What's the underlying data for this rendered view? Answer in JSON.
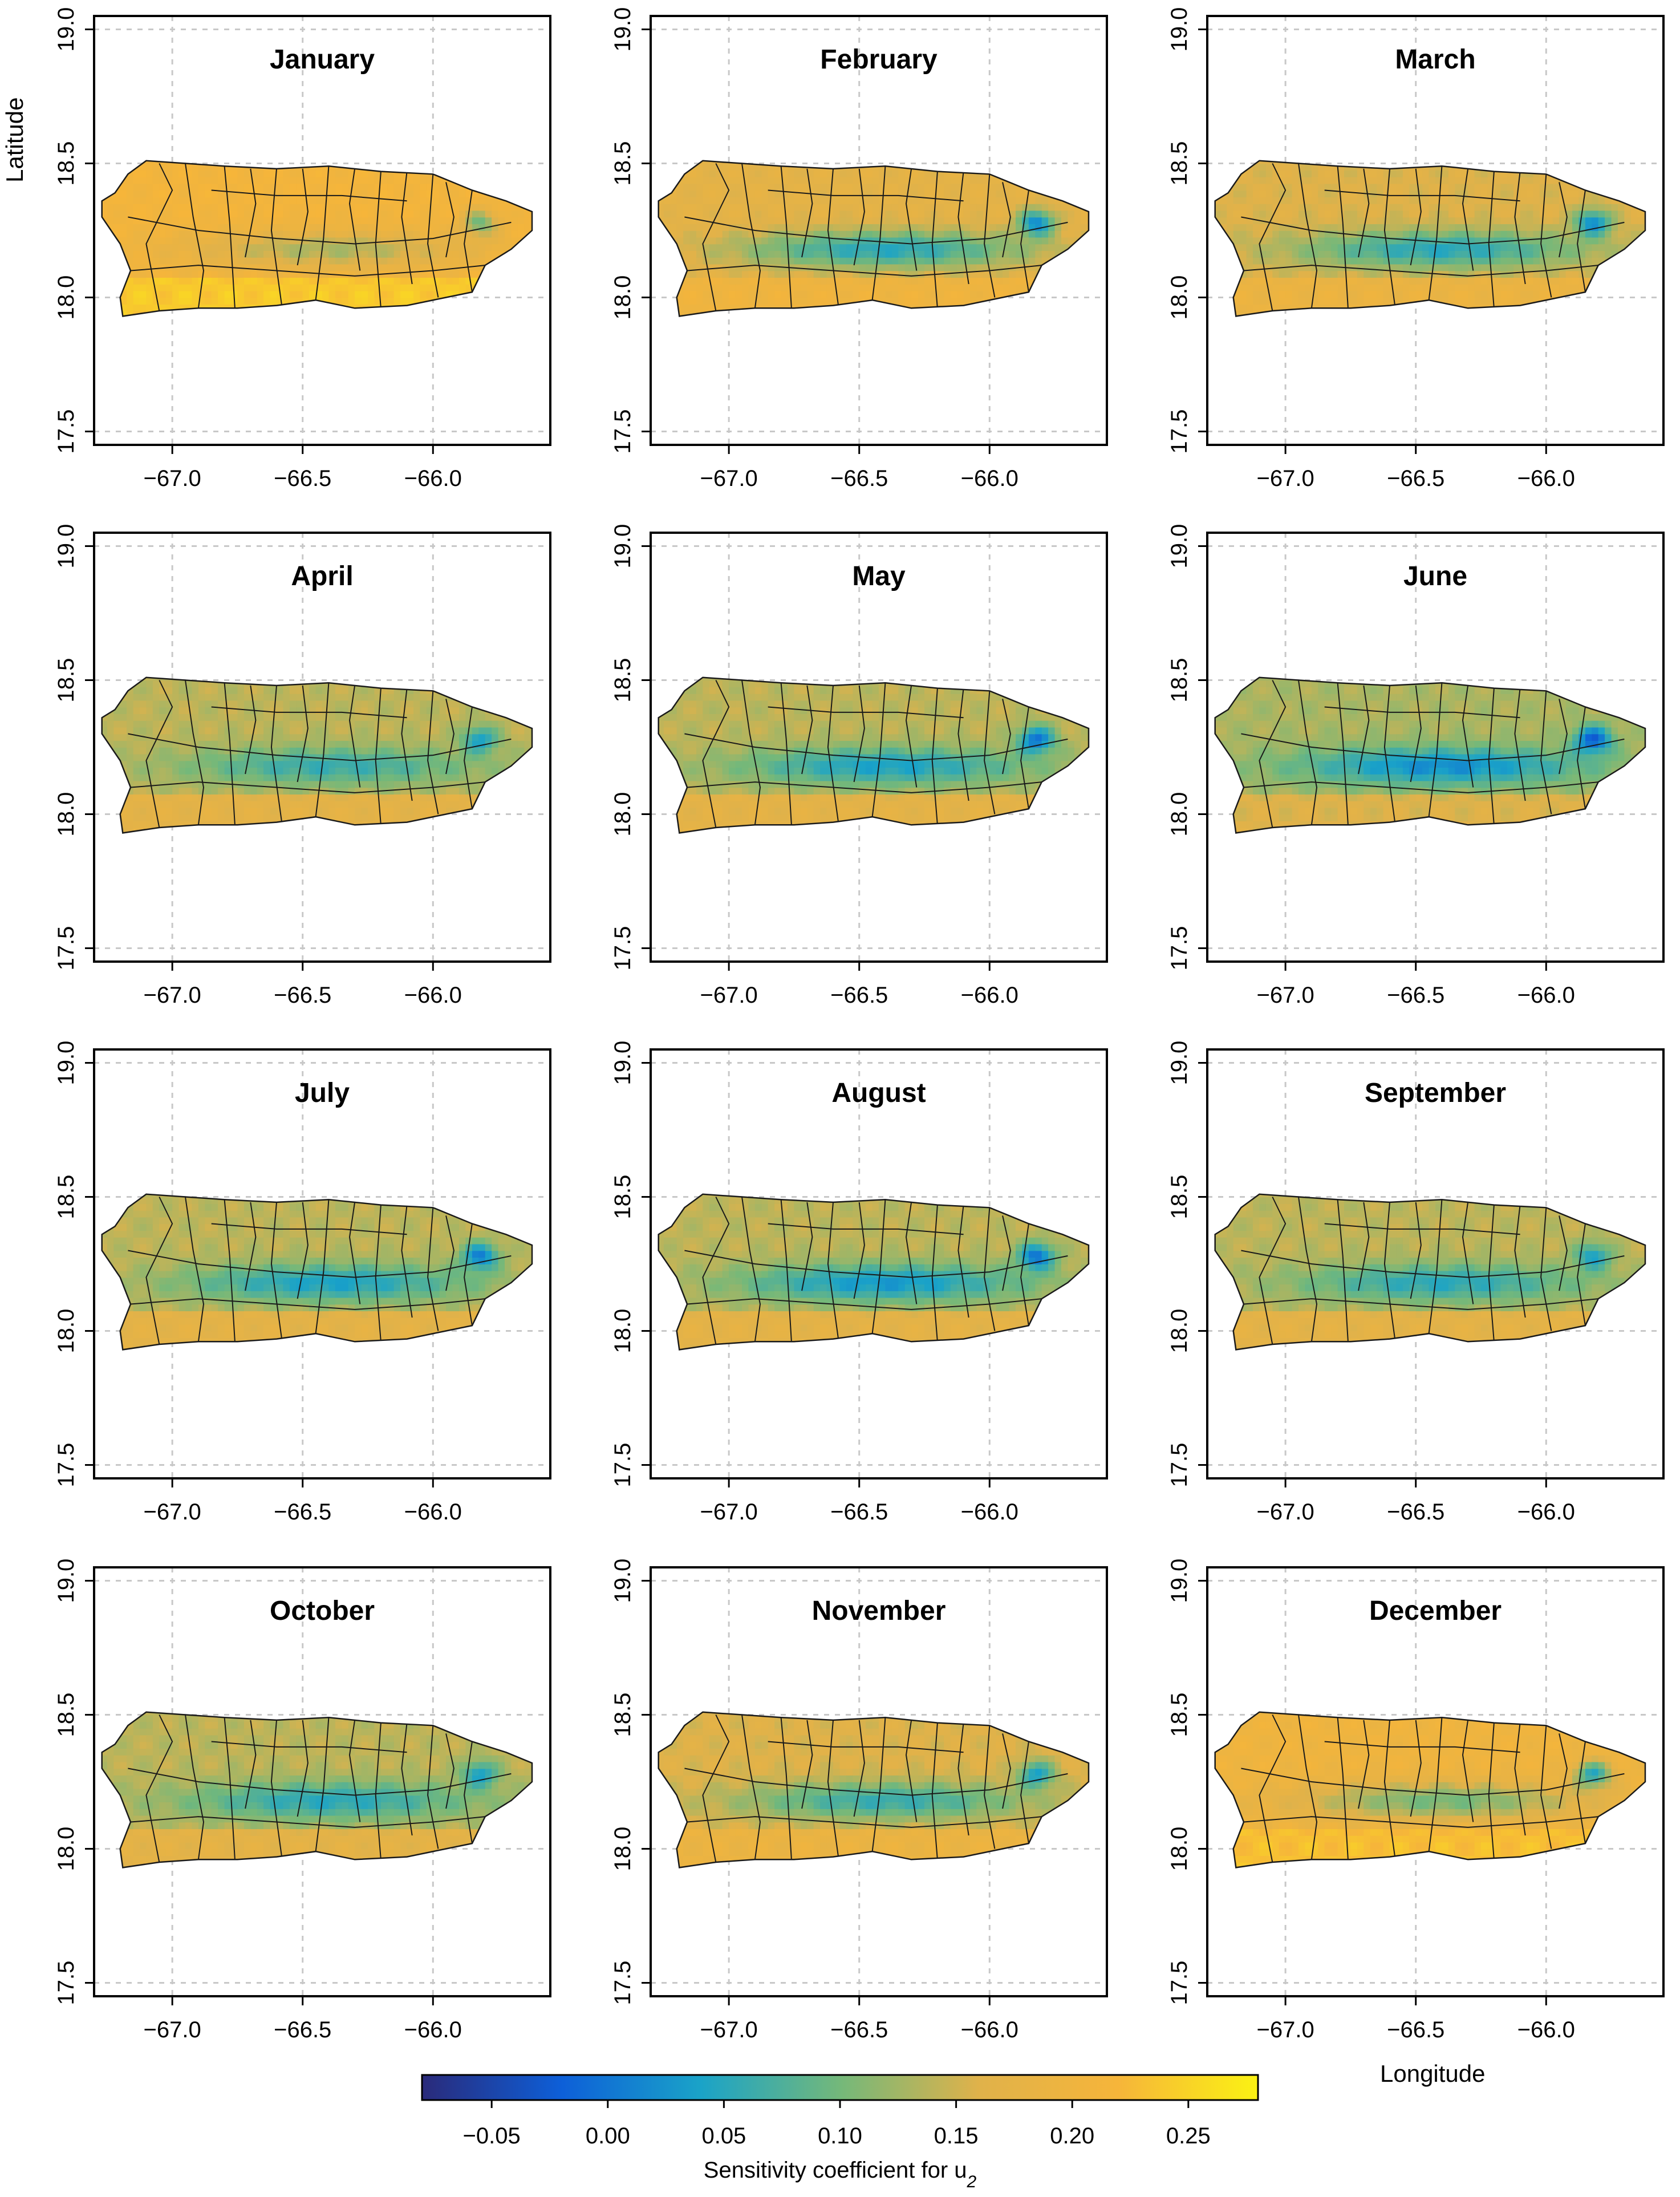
{
  "figure": {
    "x_axis_label": "Longitude",
    "y_axis_label": "Latitude",
    "colorbar_label": "Sensitivity coefficient for u",
    "colorbar_label_subscript": "2"
  },
  "chart_data": {
    "type": "heatmap",
    "description_variable": "Sensitivity coefficient for u2",
    "xlim": [
      -67.3,
      -65.55
    ],
    "ylim": [
      17.45,
      19.05
    ],
    "x_ticks": [
      -67.0,
      -66.5,
      -66.0
    ],
    "x_tick_labels": [
      "−67.0",
      "−66.5",
      "−66.0"
    ],
    "y_ticks": [
      17.5,
      18.0,
      18.5,
      19.0
    ],
    "y_tick_labels": [
      "17.5",
      "18.0",
      "18.5",
      "19.0"
    ],
    "grid": true,
    "colorbar": {
      "range": [
        -0.08,
        0.28
      ],
      "ticks": [
        -0.05,
        0.0,
        0.05,
        0.1,
        0.15,
        0.2,
        0.25
      ],
      "tick_labels": [
        "−0.05",
        "0.00",
        "0.05",
        "0.10",
        "0.15",
        "0.20",
        "0.25"
      ],
      "colors": [
        "#2a2a7a",
        "#0d5fd8",
        "#1aa3c8",
        "#74b87a",
        "#e0b24a",
        "#f6b53a",
        "#fbf213"
      ]
    },
    "panels": [
      {
        "title": "January",
        "base_value": 0.21,
        "interior_value": 0.13,
        "east_low": 0.1
      },
      {
        "title": "February",
        "base_value": 0.17,
        "interior_value": 0.05,
        "east_low": 0.02
      },
      {
        "title": "March",
        "base_value": 0.16,
        "interior_value": 0.05,
        "east_low": 0.02
      },
      {
        "title": "April",
        "base_value": 0.14,
        "interior_value": 0.06,
        "east_low": 0.04
      },
      {
        "title": "May",
        "base_value": 0.14,
        "interior_value": 0.04,
        "east_low": 0.0
      },
      {
        "title": "June",
        "base_value": 0.13,
        "interior_value": 0.02,
        "east_low": -0.02
      },
      {
        "title": "July",
        "base_value": 0.14,
        "interior_value": 0.04,
        "east_low": 0.01
      },
      {
        "title": "August",
        "base_value": 0.14,
        "interior_value": 0.03,
        "east_low": 0.0
      },
      {
        "title": "September",
        "base_value": 0.14,
        "interior_value": 0.05,
        "east_low": 0.04
      },
      {
        "title": "October",
        "base_value": 0.14,
        "interior_value": 0.05,
        "east_low": 0.04
      },
      {
        "title": "November",
        "base_value": 0.16,
        "interior_value": 0.06,
        "east_low": 0.04
      },
      {
        "title": "December",
        "base_value": 0.2,
        "interior_value": 0.1,
        "east_low": 0.05
      }
    ]
  }
}
